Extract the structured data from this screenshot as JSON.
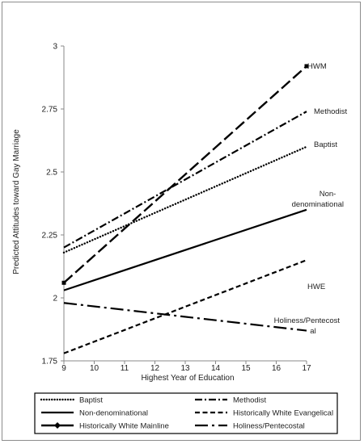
{
  "chart_data": {
    "type": "line",
    "title": "",
    "xlabel": "Highest Year of Education",
    "ylabel": "Predicted Attitudes  toward Gay Marriage",
    "xlim": [
      9,
      17
    ],
    "ylim": [
      1.75,
      3
    ],
    "x_ticks": [
      "9",
      "10",
      "11",
      "12",
      "13",
      "14",
      "15",
      "16",
      "17"
    ],
    "y_ticks": [
      "1.75",
      "2",
      "2.25",
      "2.5",
      "2.75",
      "3"
    ],
    "grid": false,
    "legend_position": "bottom",
    "series": [
      {
        "name": "Baptist",
        "end_label": [
          "Baptist"
        ],
        "x": [
          9,
          17
        ],
        "values": [
          2.18,
          2.6
        ],
        "dash": "dotted"
      },
      {
        "name": "Methodist",
        "end_label": [
          "Methodist"
        ],
        "x": [
          9,
          17
        ],
        "values": [
          2.2,
          2.74
        ],
        "dash": "dashdot"
      },
      {
        "name": "Non-denominational",
        "end_label": [
          "Non-",
          "denominational"
        ],
        "x": [
          9,
          17
        ],
        "values": [
          2.03,
          2.35
        ],
        "dash": "solid"
      },
      {
        "name": "Historically White Evangelical",
        "end_label": [
          "HWE"
        ],
        "x": [
          9,
          17
        ],
        "values": [
          1.78,
          2.15
        ],
        "dash": "dashed"
      },
      {
        "name": "Historically White Mainline",
        "end_label": [
          "HWM"
        ],
        "x": [
          9,
          17
        ],
        "values": [
          2.06,
          2.92
        ],
        "dash": "longdash"
      },
      {
        "name": "Holiness/Pentecostal",
        "end_label": [
          "Holiness/Pentecost",
          "al"
        ],
        "x": [
          9,
          17
        ],
        "values": [
          1.98,
          1.87
        ],
        "dash": "longdashdot"
      }
    ]
  }
}
